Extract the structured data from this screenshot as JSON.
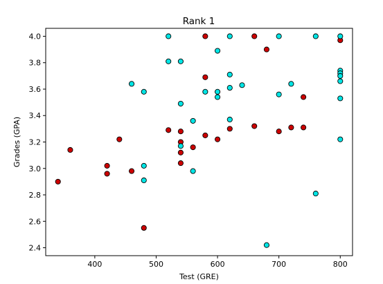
{
  "chart_data": {
    "type": "scatter",
    "title": "Rank 1",
    "xlabel": "Test (GRE)",
    "ylabel": "Grades (GPA)",
    "xlim": [
      320,
      820
    ],
    "ylim": [
      2.34,
      4.06
    ],
    "xticks": [
      400,
      500,
      600,
      700,
      800
    ],
    "xtick_labels": [
      "400",
      "500",
      "600",
      "700",
      "800"
    ],
    "yticks": [
      2.4,
      2.6,
      2.8,
      3.0,
      3.2,
      3.4,
      3.6,
      3.8,
      4.0
    ],
    "ytick_labels": [
      "2.4",
      "2.6",
      "2.8",
      "3.0",
      "3.2",
      "3.4",
      "3.6",
      "3.8",
      "4.0"
    ],
    "grid": false,
    "marker_edge_color": "#000000",
    "series": [
      {
        "color": "#cc0000",
        "points": [
          {
            "x": 340,
            "y": 2.9
          },
          {
            "x": 360,
            "y": 3.14
          },
          {
            "x": 420,
            "y": 3.02
          },
          {
            "x": 420,
            "y": 2.96
          },
          {
            "x": 440,
            "y": 3.22
          },
          {
            "x": 460,
            "y": 2.98
          },
          {
            "x": 480,
            "y": 2.55
          },
          {
            "x": 520,
            "y": 3.29
          },
          {
            "x": 540,
            "y": 3.28
          },
          {
            "x": 540,
            "y": 3.2
          },
          {
            "x": 540,
            "y": 3.12
          },
          {
            "x": 540,
            "y": 3.04
          },
          {
            "x": 560,
            "y": 3.16
          },
          {
            "x": 580,
            "y": 4.0
          },
          {
            "x": 580,
            "y": 3.69
          },
          {
            "x": 580,
            "y": 3.25
          },
          {
            "x": 600,
            "y": 3.22
          },
          {
            "x": 620,
            "y": 3.3
          },
          {
            "x": 660,
            "y": 4.0
          },
          {
            "x": 660,
            "y": 3.32
          },
          {
            "x": 680,
            "y": 3.9
          },
          {
            "x": 700,
            "y": 3.28
          },
          {
            "x": 720,
            "y": 3.31
          },
          {
            "x": 740,
            "y": 3.54
          },
          {
            "x": 740,
            "y": 3.31
          },
          {
            "x": 800,
            "y": 3.97
          }
        ]
      },
      {
        "color": "#00e5e5",
        "points": [
          {
            "x": 460,
            "y": 3.64
          },
          {
            "x": 480,
            "y": 3.58
          },
          {
            "x": 480,
            "y": 3.02
          },
          {
            "x": 480,
            "y": 2.91
          },
          {
            "x": 520,
            "y": 4.0
          },
          {
            "x": 520,
            "y": 3.81
          },
          {
            "x": 540,
            "y": 3.81
          },
          {
            "x": 540,
            "y": 3.49
          },
          {
            "x": 540,
            "y": 3.17
          },
          {
            "x": 560,
            "y": 3.36
          },
          {
            "x": 560,
            "y": 2.98
          },
          {
            "x": 580,
            "y": 3.58
          },
          {
            "x": 600,
            "y": 3.89
          },
          {
            "x": 600,
            "y": 3.58
          },
          {
            "x": 600,
            "y": 3.54
          },
          {
            "x": 620,
            "y": 4.0
          },
          {
            "x": 620,
            "y": 3.71
          },
          {
            "x": 620,
            "y": 3.61
          },
          {
            "x": 620,
            "y": 3.37
          },
          {
            "x": 640,
            "y": 3.63
          },
          {
            "x": 680,
            "y": 2.42
          },
          {
            "x": 700,
            "y": 4.0
          },
          {
            "x": 700,
            "y": 3.56
          },
          {
            "x": 720,
            "y": 3.64
          },
          {
            "x": 760,
            "y": 4.0
          },
          {
            "x": 760,
            "y": 2.81
          },
          {
            "x": 800,
            "y": 4.0
          },
          {
            "x": 800,
            "y": 3.74
          },
          {
            "x": 800,
            "y": 3.72
          },
          {
            "x": 800,
            "y": 3.7
          },
          {
            "x": 800,
            "y": 3.66
          },
          {
            "x": 800,
            "y": 3.53
          },
          {
            "x": 800,
            "y": 3.22
          }
        ]
      }
    ]
  }
}
